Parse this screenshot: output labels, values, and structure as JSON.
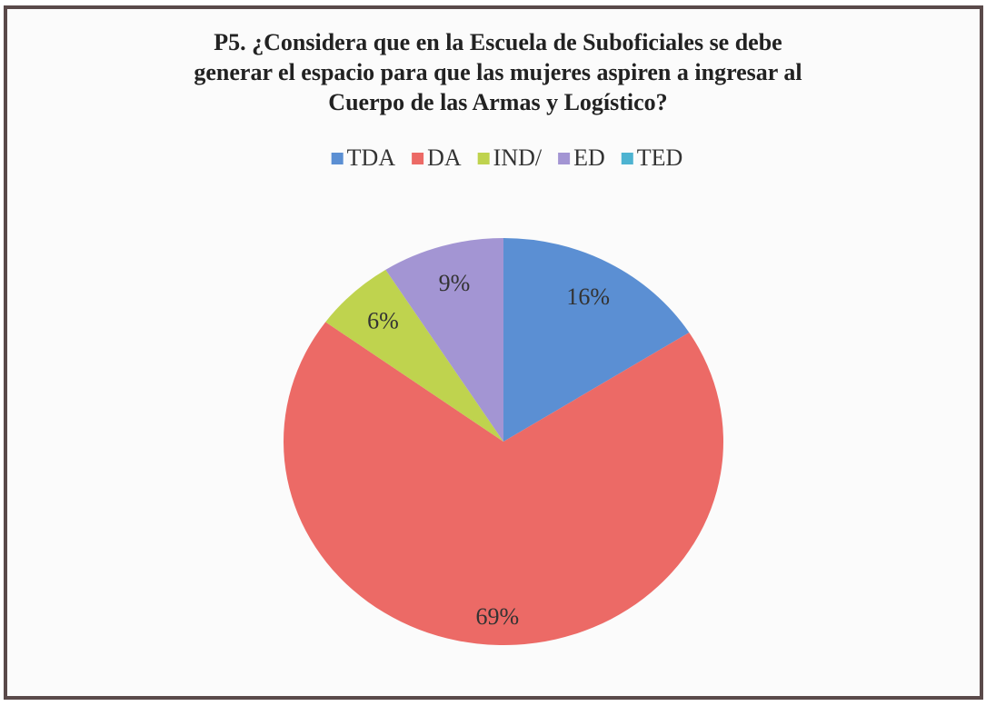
{
  "chart_data": {
    "type": "pie",
    "title_lines": [
      "P5. ¿Considera que en la Escuela de Suboficiales se debe",
      "generar el espacio para que las mujeres aspiren a ingresar al",
      "Cuerpo de las Armas y Logístico?"
    ],
    "categories": [
      "TDA",
      "DA",
      "IND/",
      "ED",
      "TED"
    ],
    "values": [
      16,
      69,
      6,
      9,
      0
    ],
    "value_labels": [
      "16%",
      "69%",
      "6%",
      "9%",
      null
    ],
    "colors": [
      "#5b8fd3",
      "#ec6a66",
      "#bfd34e",
      "#a395d3",
      "#4db3d1"
    ],
    "legend": "top"
  }
}
